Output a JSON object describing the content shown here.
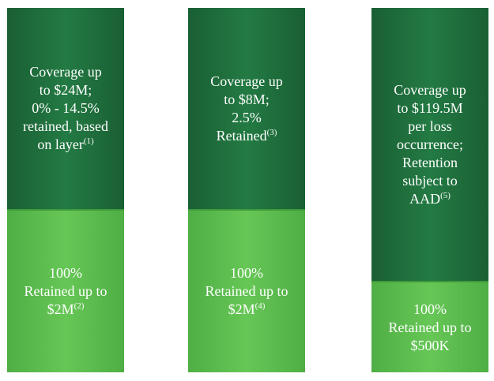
{
  "columns": [
    {
      "top": {
        "lines": [
          "Coverage up",
          "to $24M;",
          "0% - 14.5%",
          "retained, based",
          "on layer"
        ],
        "note": "(1)"
      },
      "bottom": {
        "lines": [
          "100%",
          "Retained up to",
          "$2M"
        ],
        "note": "(2)"
      }
    },
    {
      "top": {
        "lines": [
          "Coverage up",
          "to $8M;",
          "2.5%",
          "Retained"
        ],
        "note": "(3)"
      },
      "bottom": {
        "lines": [
          "100%",
          "Retained up to",
          "$2M"
        ],
        "note": "(4)"
      }
    },
    {
      "top": {
        "lines": [
          "Coverage up",
          "to $119.5M",
          "per loss",
          "occurrence;",
          "Retention",
          "subject to",
          "AAD"
        ],
        "note": "(5)"
      },
      "bottom": {
        "lines": [
          "100%",
          "Retained up to",
          "$500K"
        ]
      }
    }
  ]
}
